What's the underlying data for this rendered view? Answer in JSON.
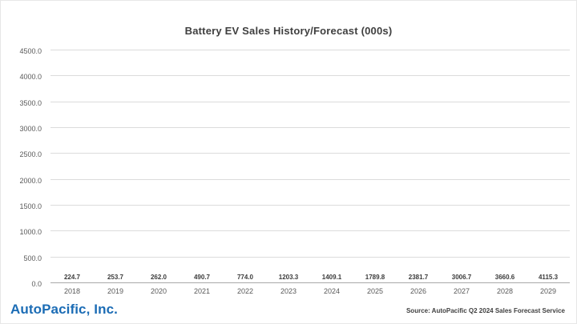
{
  "chart_data": {
    "type": "bar",
    "title": "Battery EV Sales History/Forecast (000s)",
    "categories": [
      "2018",
      "2019",
      "2020",
      "2021",
      "2022",
      "2023",
      "2024",
      "2025",
      "2026",
      "2027",
      "2028",
      "2029"
    ],
    "values": [
      224.7,
      253.7,
      262.0,
      490.7,
      774.0,
      1203.3,
      1409.1,
      1789.8,
      2381.7,
      3006.7,
      3660.6,
      4115.3
    ],
    "value_labels": [
      "224.7",
      "253.7",
      "262.0",
      "490.7",
      "774.0",
      "1203.3",
      "1409.1",
      "1789.8",
      "2381.7",
      "3006.7",
      "3660.6",
      "4115.3"
    ],
    "bar_types": [
      "history",
      "history",
      "history",
      "history",
      "history",
      "history",
      "forecast",
      "forecast",
      "forecast",
      "forecast",
      "forecast",
      "forecast"
    ],
    "history_color": "#e2702f",
    "forecast_color": "#1f5f7e",
    "xlabel": "",
    "ylabel": "",
    "ylim": [
      0,
      4500
    ],
    "y_ticks": [
      "0.0",
      "500.0",
      "1000.0",
      "1500.0",
      "2000.0",
      "2500.0",
      "3000.0",
      "3500.0",
      "4000.0",
      "4500.0"
    ],
    "grid": "horizontal",
    "legend": "none"
  },
  "footer": {
    "logo_text": "AutoPacific, Inc.",
    "source_text": "Source: AutoPacific Q2 2024 Sales Forecast Service"
  }
}
